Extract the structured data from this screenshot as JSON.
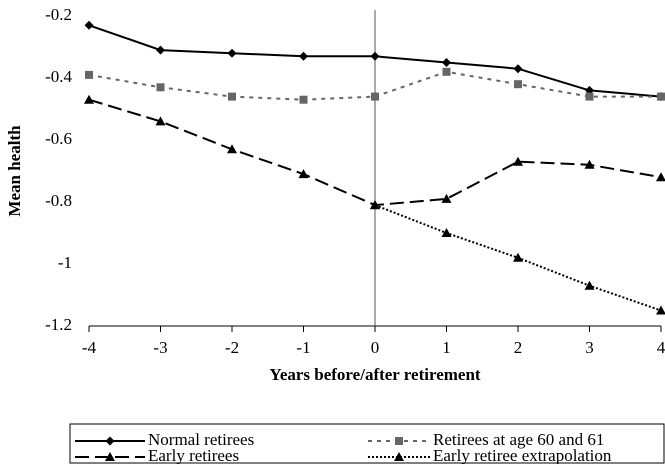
{
  "chart_data": {
    "type": "line",
    "x_label": "Years before/after retirement",
    "y_label": "Mean health",
    "x": [
      -4,
      -3,
      -2,
      -1,
      0,
      1,
      2,
      3,
      4
    ],
    "xlim": [
      -4,
      4
    ],
    "xticks": [
      -4,
      -3,
      -2,
      -1,
      0,
      1,
      2,
      3,
      4
    ],
    "ylim": [
      -1.2,
      -0.2
    ],
    "yticks": [
      -1.2,
      -1,
      -0.8,
      -0.6,
      -0.4,
      -0.2
    ],
    "vline": 0,
    "series": [
      {
        "name": "Normal retirees",
        "color": "#000000",
        "dash": "none",
        "marker": "diamond",
        "values": [
          -0.23,
          -0.31,
          -0.32,
          -0.33,
          -0.33,
          -0.35,
          -0.37,
          -0.44,
          -0.46
        ]
      },
      {
        "name": "Retirees at age 60 and 61",
        "color": "#666666",
        "dash": "4,5",
        "marker": "square",
        "values": [
          -0.39,
          -0.43,
          -0.46,
          -0.47,
          -0.46,
          -0.38,
          -0.42,
          -0.46,
          -0.46
        ]
      },
      {
        "name": "Early retirees",
        "color": "#000000",
        "dash": "14,6",
        "marker": "triangle",
        "values": [
          -0.47,
          -0.54,
          -0.63,
          -0.71,
          -0.81,
          -0.79,
          -0.67,
          -0.68,
          -0.72
        ]
      },
      {
        "name": "Early retiree extrapolation",
        "color": "#000000",
        "dash": "2,2",
        "marker": "triangle",
        "values": [
          null,
          null,
          null,
          null,
          -0.81,
          -0.9,
          -0.98,
          -1.07,
          -1.15
        ]
      }
    ]
  }
}
